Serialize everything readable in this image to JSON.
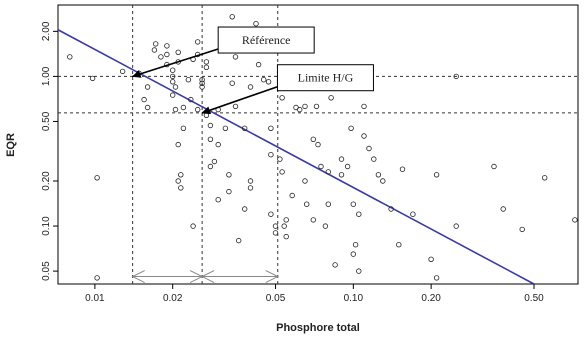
{
  "chart_data": {
    "type": "scatter",
    "title": "",
    "xlabel": "Phosphore total",
    "ylabel": "EQR",
    "x_scale": "log",
    "y_scale": "log",
    "xlim": [
      0.0072,
      0.74
    ],
    "ylim": [
      0.041,
      3.0
    ],
    "x_ticks": [
      {
        "value": 0.01,
        "label": "0.01"
      },
      {
        "value": 0.02,
        "label": "0.02"
      },
      {
        "value": 0.05,
        "label": "0.05"
      },
      {
        "value": 0.1,
        "label": "0.10"
      },
      {
        "value": 0.2,
        "label": "0.20"
      },
      {
        "value": 0.5,
        "label": "0.50"
      }
    ],
    "y_ticks": [
      {
        "value": 0.05,
        "label": "0.05"
      },
      {
        "value": 0.1,
        "label": "0.10"
      },
      {
        "value": 0.2,
        "label": "0.20"
      },
      {
        "value": 0.5,
        "label": "0.50"
      },
      {
        "value": 1.0,
        "label": "1.00"
      },
      {
        "value": 2.0,
        "label": "2.00"
      }
    ],
    "grid": false,
    "regression_line": {
      "color": "#3a3aa8",
      "points": [
        [
          0.0072,
          2.05
        ],
        [
          0.5,
          0.041
        ]
      ]
    },
    "reference_lines": {
      "vertical": [
        0.014,
        0.026,
        0.051
      ],
      "horizontal": [
        1.0,
        0.57
      ]
    },
    "annotations": [
      {
        "text": "Référence",
        "label_at": [
          0.046,
          1.75
        ],
        "arrow_to": [
          0.014,
          1.0
        ]
      },
      {
        "text": "Limite H/G",
        "label_at": [
          0.078,
          0.98
        ],
        "arrow_to": [
          0.026,
          0.57
        ]
      }
    ],
    "range_arrows": [
      {
        "from": 0.014,
        "to": 0.026,
        "y": 0.046
      },
      {
        "from": 0.026,
        "to": 0.051,
        "y": 0.046
      }
    ],
    "points": [
      [
        0.008,
        1.35
      ],
      [
        0.0098,
        0.97
      ],
      [
        0.0102,
        0.21
      ],
      [
        0.0102,
        0.045
      ],
      [
        0.0128,
        1.08
      ],
      [
        0.0148,
        1.05
      ],
      [
        0.0155,
        0.7
      ],
      [
        0.016,
        0.62
      ],
      [
        0.016,
        0.85
      ],
      [
        0.017,
        1.5
      ],
      [
        0.0172,
        1.65
      ],
      [
        0.018,
        1.35
      ],
      [
        0.019,
        1.2
      ],
      [
        0.019,
        1.4
      ],
      [
        0.019,
        1.6
      ],
      [
        0.02,
        0.75
      ],
      [
        0.02,
        1.0
      ],
      [
        0.02,
        1.1
      ],
      [
        0.02,
        0.92
      ],
      [
        0.0205,
        0.85
      ],
      [
        0.0205,
        0.6
      ],
      [
        0.021,
        1.25
      ],
      [
        0.021,
        1.45
      ],
      [
        0.0215,
        0.22
      ],
      [
        0.0215,
        0.18
      ],
      [
        0.021,
        0.2
      ],
      [
        0.022,
        0.62
      ],
      [
        0.022,
        0.45
      ],
      [
        0.021,
        0.35
      ],
      [
        0.023,
        0.95
      ],
      [
        0.0235,
        0.7
      ],
      [
        0.024,
        1.3
      ],
      [
        0.024,
        0.1
      ],
      [
        0.025,
        1.4
      ],
      [
        0.025,
        1.7
      ],
      [
        0.025,
        0.6
      ],
      [
        0.026,
        0.95
      ],
      [
        0.026,
        0.9
      ],
      [
        0.026,
        0.85
      ],
      [
        0.027,
        1.15
      ],
      [
        0.027,
        1.25
      ],
      [
        0.027,
        0.55
      ],
      [
        0.028,
        0.47
      ],
      [
        0.028,
        0.38
      ],
      [
        0.028,
        0.25
      ],
      [
        0.029,
        0.27
      ],
      [
        0.03,
        0.6
      ],
      [
        0.03,
        0.35
      ],
      [
        0.03,
        0.15
      ],
      [
        0.032,
        0.45
      ],
      [
        0.033,
        0.22
      ],
      [
        0.033,
        0.17
      ],
      [
        0.034,
        0.9
      ],
      [
        0.034,
        2.5
      ],
      [
        0.035,
        1.35
      ],
      [
        0.035,
        0.63
      ],
      [
        0.036,
        0.08
      ],
      [
        0.038,
        0.13
      ],
      [
        0.038,
        0.45
      ],
      [
        0.04,
        0.85
      ],
      [
        0.04,
        0.2
      ],
      [
        0.04,
        0.18
      ],
      [
        0.042,
        2.25
      ],
      [
        0.043,
        1.2
      ],
      [
        0.045,
        0.95
      ],
      [
        0.047,
        0.92
      ],
      [
        0.048,
        0.45
      ],
      [
        0.048,
        0.3
      ],
      [
        0.048,
        0.12
      ],
      [
        0.05,
        0.1
      ],
      [
        0.05,
        0.09
      ],
      [
        0.052,
        1.0
      ],
      [
        0.053,
        0.72
      ],
      [
        0.052,
        0.28
      ],
      [
        0.053,
        0.23
      ],
      [
        0.054,
        0.1
      ],
      [
        0.055,
        0.085
      ],
      [
        0.055,
        0.11
      ],
      [
        0.058,
        0.16
      ],
      [
        0.06,
        0.62
      ],
      [
        0.062,
        0.6
      ],
      [
        0.065,
        0.63
      ],
      [
        0.065,
        0.2
      ],
      [
        0.066,
        0.14
      ],
      [
        0.07,
        0.38
      ],
      [
        0.07,
        0.11
      ],
      [
        0.072,
        0.63
      ],
      [
        0.073,
        0.35
      ],
      [
        0.075,
        0.25
      ],
      [
        0.078,
        0.1
      ],
      [
        0.08,
        0.23
      ],
      [
        0.08,
        0.14
      ],
      [
        0.082,
        0.72
      ],
      [
        0.085,
        0.055
      ],
      [
        0.09,
        0.28
      ],
      [
        0.09,
        0.22
      ],
      [
        0.095,
        0.25
      ],
      [
        0.098,
        0.45
      ],
      [
        0.1,
        0.14
      ],
      [
        0.1,
        0.065
      ],
      [
        0.102,
        0.075
      ],
      [
        0.105,
        0.05
      ],
      [
        0.105,
        0.12
      ],
      [
        0.11,
        0.63
      ],
      [
        0.11,
        0.4
      ],
      [
        0.115,
        0.33
      ],
      [
        0.12,
        0.28
      ],
      [
        0.125,
        0.22
      ],
      [
        0.13,
        0.2
      ],
      [
        0.14,
        0.13
      ],
      [
        0.15,
        0.075
      ],
      [
        0.155,
        0.24
      ],
      [
        0.17,
        0.12
      ],
      [
        0.2,
        0.06
      ],
      [
        0.21,
        0.22
      ],
      [
        0.21,
        0.045
      ],
      [
        0.25,
        1.0
      ],
      [
        0.25,
        0.1
      ],
      [
        0.35,
        0.25
      ],
      [
        0.38,
        0.13
      ],
      [
        0.45,
        0.095
      ],
      [
        0.55,
        0.21
      ],
      [
        0.72,
        0.11
      ]
    ]
  }
}
